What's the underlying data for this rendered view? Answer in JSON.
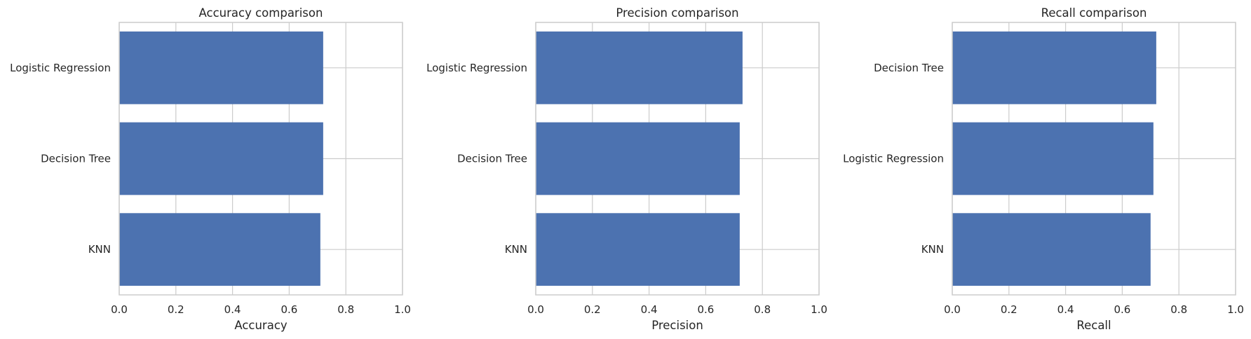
{
  "figure": {
    "bar_color": "#4c72b0",
    "grid_color": "#cccccc",
    "spine_color": "#cccccc",
    "text_color": "#262626"
  },
  "chart_data": [
    {
      "type": "bar",
      "orientation": "horizontal",
      "title": "Accuracy comparison",
      "xlabel": "Accuracy",
      "ylabel": "",
      "categories": [
        "Logistic Regression",
        "Decision Tree",
        "KNN"
      ],
      "values": [
        0.72,
        0.72,
        0.71
      ],
      "xlim": [
        0.0,
        1.0
      ],
      "xticks": [
        "0.0",
        "0.2",
        "0.4",
        "0.6",
        "0.8",
        "1.0"
      ],
      "grid": true,
      "legend": "none"
    },
    {
      "type": "bar",
      "orientation": "horizontal",
      "title": "Precision comparison",
      "xlabel": "Precision",
      "ylabel": "",
      "categories": [
        "Logistic Regression",
        "Decision Tree",
        "KNN"
      ],
      "values": [
        0.73,
        0.72,
        0.72
      ],
      "xlim": [
        0.0,
        1.0
      ],
      "xticks": [
        "0.0",
        "0.2",
        "0.4",
        "0.6",
        "0.8",
        "1.0"
      ],
      "grid": true,
      "legend": "none"
    },
    {
      "type": "bar",
      "orientation": "horizontal",
      "title": "Recall comparison",
      "xlabel": "Recall",
      "ylabel": "",
      "categories": [
        "Decision Tree",
        "Logistic Regression",
        "KNN"
      ],
      "values": [
        0.72,
        0.71,
        0.7
      ],
      "xlim": [
        0.0,
        1.0
      ],
      "xticks": [
        "0.0",
        "0.2",
        "0.4",
        "0.6",
        "0.8",
        "1.0"
      ],
      "grid": true,
      "legend": "none"
    }
  ]
}
